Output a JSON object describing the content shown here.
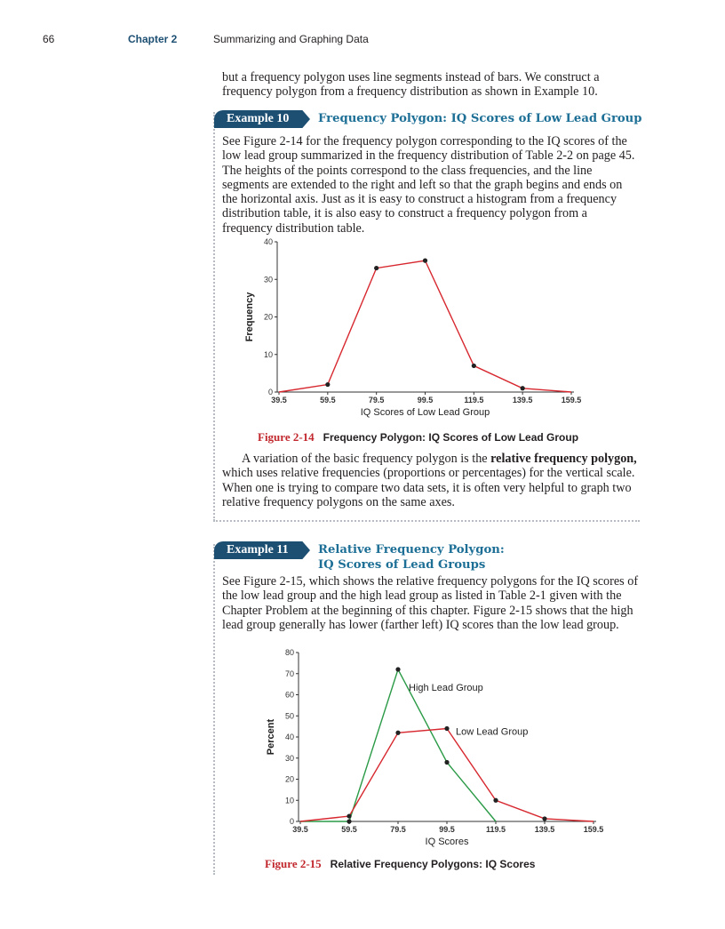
{
  "header": {
    "page_number": "66",
    "chapter_label": "Chapter 2",
    "chapter_title": "Summarizing and Graphing Data"
  },
  "intro": {
    "text": "but a frequency polygon uses line segments instead of bars. We construct a frequency polygon from a frequency distribution as shown in Example 10."
  },
  "example10": {
    "badge": "Example 10",
    "title": "Frequency Polygon: IQ Scores of Low Lead Group",
    "text": "See Figure 2-14 for the frequency polygon corresponding to the IQ scores of the low lead group summarized in the frequency distribution of Table 2-2 on page 45. The heights of the points correspond to the class frequencies, and the line segments are extended to the right and left so that the graph begins and ends on the horizontal axis. Just as it is easy to construct a histogram from a frequency distribution table, it is also easy to construct a frequency polygon from a frequency distribution table.",
    "figure_label": "Figure 2-14",
    "figure_caption": "Frequency Polygon: IQ Scores of Low Lead Group",
    "after_text_1": "A variation of the basic frequency polygon is the ",
    "after_text_bold": "relative frequency polygon,",
    "after_text_2": " which uses relative frequencies (proportions or percentages) for the vertical scale. When one is trying to compare two data sets, it is often very helpful to graph two relative frequency polygons on the same axes."
  },
  "example11": {
    "badge": "Example 11",
    "title_line1": "Relative Frequency Polygon:",
    "title_line2": "IQ Scores of Lead Groups",
    "text": "See Figure 2-15, which shows the relative frequency polygons for the IQ scores of the low lead group and the high lead group as listed in Table 2-1 given with the Chapter Problem at the beginning of this chapter. Figure 2-15 shows that the high lead group generally has lower (farther left) IQ scores than the low lead group.",
    "figure_label": "Figure 2-15",
    "figure_caption": "Relative Frequency Polygons: IQ Scores"
  },
  "chart_data": [
    {
      "type": "line",
      "xlabel": "IQ Scores of Low Lead Group",
      "ylabel": "Frequency",
      "x": [
        "39.5",
        "59.5",
        "79.5",
        "99.5",
        "119.5",
        "139.5",
        "159.5"
      ],
      "ylim": [
        0,
        40
      ],
      "yticks": [
        0,
        10,
        20,
        30,
        40
      ],
      "grid": false,
      "series": [
        {
          "values": [
            0,
            2,
            33,
            35,
            7,
            1,
            0
          ],
          "color": "#d7282f"
        }
      ]
    },
    {
      "type": "line",
      "xlabel": "IQ Scores",
      "ylabel": "Percent",
      "x": [
        "39.5",
        "59.5",
        "79.5",
        "99.5",
        "119.5",
        "139.5",
        "159.5"
      ],
      "ylim": [
        0,
        80
      ],
      "yticks": [
        0,
        10,
        20,
        30,
        40,
        50,
        60,
        70,
        80
      ],
      "grid": false,
      "series": [
        {
          "name": "High Lead Group",
          "values": [
            0,
            0,
            72,
            28,
            0
          ],
          "x": [
            "39.5",
            "59.5",
            "79.5",
            "99.5",
            "119.5"
          ],
          "color": "#2a9a46"
        },
        {
          "name": "Low Lead Group",
          "values": [
            0,
            2.5,
            42,
            44,
            10,
            1.3,
            0
          ],
          "color": "#d7282f"
        }
      ]
    }
  ]
}
